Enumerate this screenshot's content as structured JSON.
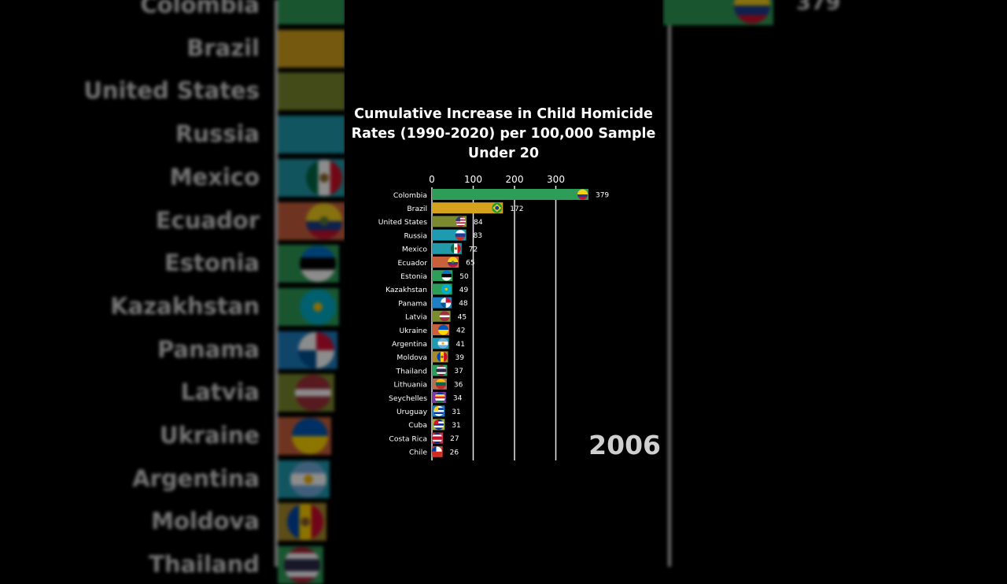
{
  "chart_data": {
    "type": "bar",
    "title": "Cumulative Increase in Child Homicide Rates (1990-2020) per 100,000 Sample Under 20",
    "period_label": "2006",
    "xlim": [
      0,
      379
    ],
    "x_ticks": [
      "0",
      "100",
      "200",
      "300"
    ],
    "x_tick_values": [
      0,
      100,
      200,
      300
    ],
    "grid": true,
    "orientation": "horizontal",
    "categories": [
      "Colombia",
      "Brazil",
      "United States",
      "Russia",
      "Mexico",
      "Ecuador",
      "Estonia",
      "Kazakhstan",
      "Panama",
      "Latvia",
      "Ukraine",
      "Argentina",
      "Moldova",
      "Thailand",
      "Lithuania",
      "Seychelles",
      "Uruguay",
      "Cuba",
      "Costa Rica",
      "Chile"
    ],
    "values": [
      379,
      172,
      84,
      83,
      72,
      65,
      50,
      49,
      48,
      45,
      42,
      41,
      39,
      37,
      36,
      34,
      31,
      31,
      27,
      26
    ],
    "value_labels": [
      "379",
      "172",
      "84",
      "83",
      "72",
      "65",
      "50",
      "49",
      "48",
      "45",
      "42",
      "41",
      "39",
      "37",
      "36",
      "34",
      "31",
      "31",
      "27",
      "26"
    ],
    "bar_colors": [
      "#2e9d58",
      "#d4a21c",
      "#7b8a2e",
      "#1e9bb0",
      "#229aaa",
      "#c9603c",
      "#2e9d58",
      "#2e9d58",
      "#1e7fc2",
      "#7b8a2e",
      "#c9603c",
      "#1e9bb0",
      "#a78a2c",
      "#2e9d58",
      "#b56c55",
      "#7b3ba0",
      "#1e7fc2",
      "#a0b03a",
      "#c03050",
      "#c94030"
    ],
    "flags": [
      "co-flag",
      "br-flag",
      "us-flag",
      "ru-flag",
      "mx-flag",
      "ec-flag",
      "ee-flag",
      "kz-flag",
      "pa-flag",
      "lv-flag",
      "ua-flag",
      "ar-flag",
      "md-flag",
      "th-flag",
      "lt-flag",
      "sc-flag",
      "uy-flag",
      "cu-flag",
      "cr-flag",
      "cl-flag"
    ]
  },
  "background": {
    "labels": [
      "Colombia",
      "Brazil",
      "United States",
      "Russia",
      "Mexico",
      "Ecuador",
      "Estonia",
      "Kazakhstan",
      "Panama",
      "Latvia",
      "Ukraine",
      "Argentina",
      "Moldova",
      "Thailand"
    ],
    "top_value": "379"
  }
}
